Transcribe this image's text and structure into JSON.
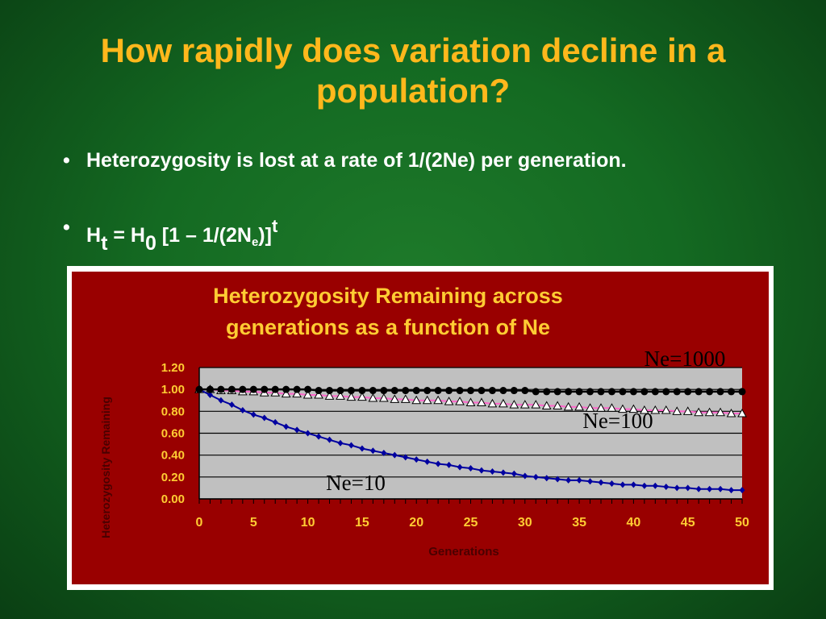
{
  "slide": {
    "title": "How rapidly does variation decline in a population?",
    "bullet1": "Heterozygosity is lost at a rate of 1/(2Ne) per generation.",
    "formula": {
      "h": "H",
      "h_sub": "t",
      "eq": " = H",
      "h0_sub": "0",
      "bracket": " [1 – 1/(2N",
      "ne_sub": "e",
      "close": ")]",
      "exp": "t"
    },
    "bullet_glyph": "•"
  },
  "chart_data": {
    "type": "line",
    "title_lines": [
      "Heterozygosity Remaining across",
      "generations as a function of Ne"
    ],
    "xlabel": "Generations",
    "ylabel": "Heterozygosity Remaining",
    "xlim": [
      0,
      50
    ],
    "ylim": [
      0,
      1.2
    ],
    "x_ticks": [
      "0",
      "5",
      "10",
      "15",
      "20",
      "25",
      "30",
      "35",
      "40",
      "45",
      "50"
    ],
    "y_ticks": [
      "0.00",
      "0.20",
      "0.40",
      "0.60",
      "0.80",
      "1.00",
      "1.20"
    ],
    "x": [
      0,
      1,
      2,
      3,
      4,
      5,
      6,
      7,
      8,
      9,
      10,
      11,
      12,
      13,
      14,
      15,
      16,
      17,
      18,
      19,
      20,
      21,
      22,
      23,
      24,
      25,
      26,
      27,
      28,
      29,
      30,
      31,
      32,
      33,
      34,
      35,
      36,
      37,
      38,
      39,
      40,
      41,
      42,
      43,
      44,
      45,
      46,
      47,
      48,
      49,
      50
    ],
    "grid": true,
    "series": [
      {
        "name": "Ne=1000",
        "Ne": 1000,
        "marker": "circle",
        "color": "#000000",
        "values": [
          1.0,
          1.0,
          1.0,
          1.0,
          1.0,
          1.0,
          1.0,
          1.0,
          1.0,
          1.0,
          1.0,
          0.99,
          0.99,
          0.99,
          0.99,
          0.99,
          0.99,
          0.99,
          0.99,
          0.99,
          0.99,
          0.99,
          0.99,
          0.99,
          0.99,
          0.99,
          0.99,
          0.99,
          0.99,
          0.99,
          0.99,
          0.98,
          0.98,
          0.98,
          0.98,
          0.98,
          0.98,
          0.98,
          0.98,
          0.98,
          0.98,
          0.98,
          0.98,
          0.98,
          0.98,
          0.98,
          0.98,
          0.98,
          0.98,
          0.98,
          0.98
        ]
      },
      {
        "name": "Ne=100",
        "Ne": 100,
        "marker": "triangle",
        "color": "#ffffff",
        "values": [
          1.0,
          1.0,
          0.99,
          0.99,
          0.98,
          0.98,
          0.97,
          0.97,
          0.96,
          0.96,
          0.95,
          0.95,
          0.94,
          0.94,
          0.93,
          0.93,
          0.92,
          0.92,
          0.91,
          0.91,
          0.9,
          0.9,
          0.9,
          0.89,
          0.89,
          0.88,
          0.88,
          0.87,
          0.87,
          0.86,
          0.86,
          0.86,
          0.85,
          0.85,
          0.84,
          0.84,
          0.83,
          0.83,
          0.83,
          0.82,
          0.82,
          0.81,
          0.81,
          0.81,
          0.8,
          0.8,
          0.79,
          0.79,
          0.79,
          0.78,
          0.78
        ]
      },
      {
        "name": "Ne=10",
        "Ne": 10,
        "marker": "diamond",
        "color": "#0000a0",
        "values": [
          1.0,
          0.95,
          0.9,
          0.86,
          0.81,
          0.77,
          0.74,
          0.7,
          0.66,
          0.63,
          0.6,
          0.57,
          0.54,
          0.51,
          0.49,
          0.46,
          0.44,
          0.42,
          0.4,
          0.38,
          0.36,
          0.34,
          0.32,
          0.31,
          0.29,
          0.28,
          0.26,
          0.25,
          0.24,
          0.23,
          0.21,
          0.2,
          0.19,
          0.18,
          0.17,
          0.17,
          0.16,
          0.15,
          0.14,
          0.13,
          0.13,
          0.12,
          0.12,
          0.11,
          0.1,
          0.1,
          0.09,
          0.09,
          0.09,
          0.08,
          0.08
        ]
      }
    ],
    "colors": {
      "panel": "#990000",
      "plot_bg": "#c0c0c0",
      "title_text": "#ffcc33",
      "tick_text": "#ffcc33",
      "axis_title_text": "#4a0000"
    }
  }
}
